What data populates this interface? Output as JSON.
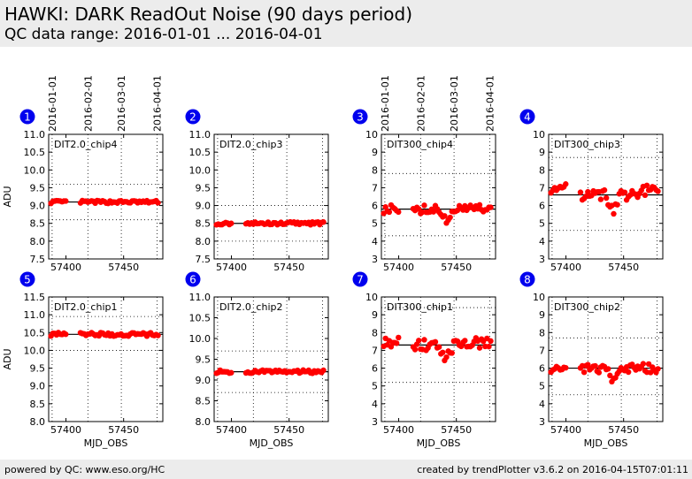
{
  "header": {
    "title": "HAWKI: DARK ReadOut Noise (90 days period)",
    "subtitle": "QC data range: 2016-01-01 ... 2016-04-01"
  },
  "footer": {
    "left": "powered by QC: www.eso.org/HC",
    "right": "created by trendPlotter v3.6.2 on 2016-04-15T07:01:11"
  },
  "colors": {
    "points": "#ff0000",
    "badge": "#0000ee",
    "header_bg": "#ececec"
  },
  "chart_data": {
    "type": "scatter",
    "xlabel": "MJD_OBS",
    "ylabel": "ADU",
    "xlim": [
      57385,
      57484
    ],
    "x_ticks": [
      57400,
      57450
    ],
    "date_ticks": [
      {
        "label": "2016-01-01",
        "mjd": 57388
      },
      {
        "label": "2016-02-01",
        "mjd": 57419
      },
      {
        "label": "2016-03-01",
        "mjd": 57448
      },
      {
        "label": "2016-04-01",
        "mjd": 57479
      }
    ],
    "panels": [
      {
        "id": "1",
        "name": "DIT2.0_chip4",
        "ylim": [
          7.5,
          11.0
        ],
        "y_ticks": [
          "7.5",
          "8.0",
          "8.5",
          "9.0",
          "9.5",
          "10.0",
          "10.5",
          "11.0"
        ],
        "median": 9.1,
        "band": [
          8.6,
          9.6
        ],
        "spread": 0.04
      },
      {
        "id": "2",
        "name": "DIT2.0_chip3",
        "ylim": [
          7.5,
          11.0
        ],
        "y_ticks": [
          "7.5",
          "8.0",
          "8.5",
          "9.0",
          "9.5",
          "10.0",
          "10.5",
          "11.0"
        ],
        "median": 8.5,
        "band": [
          8.0,
          9.0
        ],
        "spread": 0.04
      },
      {
        "id": "3",
        "name": "DIT300_chip4",
        "ylim": [
          3,
          10
        ],
        "y_ticks": [
          "3",
          "4",
          "5",
          "6",
          "7",
          "8",
          "9",
          "10"
        ],
        "median": 5.8,
        "band": [
          4.3,
          7.8
        ],
        "spread": 0.25,
        "dip": 0.7
      },
      {
        "id": "4",
        "name": "DIT300_chip3",
        "ylim": [
          3,
          10
        ],
        "y_ticks": [
          "3",
          "4",
          "5",
          "6",
          "7",
          "8",
          "9",
          "10"
        ],
        "median": 6.6,
        "band": [
          4.6,
          8.7
        ],
        "spread": 0.3,
        "dip": 0.9,
        "trend": 0.4
      },
      {
        "id": "5",
        "name": "DIT2.0_chip1",
        "ylim": [
          8.0,
          11.5
        ],
        "y_ticks": [
          "8.0",
          "8.5",
          "9.0",
          "9.5",
          "10.0",
          "10.5",
          "11.0",
          "11.5"
        ],
        "median": 10.45,
        "band": [
          10.0,
          10.95
        ],
        "spread": 0.05
      },
      {
        "id": "6",
        "name": "DIT2.0_chip2",
        "ylim": [
          8.0,
          11.0
        ],
        "y_ticks": [
          "8.0",
          "8.5",
          "9.0",
          "9.5",
          "10.0",
          "10.5",
          "11.0"
        ],
        "median": 9.2,
        "band": [
          8.7,
          9.7
        ],
        "spread": 0.04
      },
      {
        "id": "7",
        "name": "DIT300_chip1",
        "ylim": [
          3,
          10
        ],
        "y_ticks": [
          "3",
          "4",
          "5",
          "6",
          "7",
          "8",
          "9",
          "10"
        ],
        "median": 7.3,
        "band": [
          5.2,
          9.4
        ],
        "spread": 0.3,
        "dip": 0.9,
        "trend": 0.2
      },
      {
        "id": "8",
        "name": "DIT300_chip2",
        "ylim": [
          3,
          10
        ],
        "y_ticks": [
          "3",
          "4",
          "5",
          "6",
          "7",
          "8",
          "9",
          "10"
        ],
        "median": 6.0,
        "band": [
          4.5,
          7.7
        ],
        "spread": 0.25,
        "dip": 0.7
      }
    ]
  }
}
